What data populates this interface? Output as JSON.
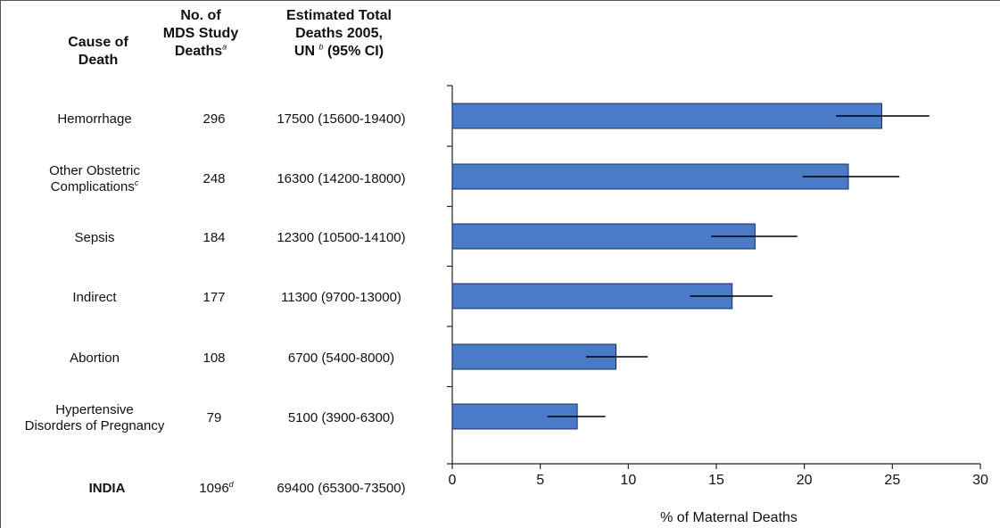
{
  "table": {
    "headers": {
      "cause": [
        "Cause of",
        "Death"
      ],
      "deaths": [
        "No. of",
        "MDS Study",
        "Deaths"
      ],
      "deaths_sup": "a",
      "estimated": [
        "Estimated Total",
        "Deaths 2005,",
        "UN",
        "(95% CI)"
      ],
      "estimated_sup": "b"
    },
    "rows": [
      {
        "cause": [
          "Hemorrhage"
        ],
        "cause_sup": "",
        "deaths": "296",
        "estimate": "17500 (15600-19400)"
      },
      {
        "cause": [
          "Other Obstetric",
          "Complications"
        ],
        "cause_sup": "c",
        "deaths": "248",
        "estimate": "16300 (14200-18000)"
      },
      {
        "cause": [
          "Sepsis"
        ],
        "cause_sup": "",
        "deaths": "184",
        "estimate": "12300 (10500-14100)"
      },
      {
        "cause": [
          "Indirect"
        ],
        "cause_sup": "",
        "deaths": "177",
        "estimate": "11300 (9700-13000)"
      },
      {
        "cause": [
          "Abortion"
        ],
        "cause_sup": "",
        "deaths": "108",
        "estimate": "6700 (5400-8000)"
      },
      {
        "cause": [
          "Hypertensive",
          "Disorders of Pregnancy"
        ],
        "cause_sup": "",
        "deaths": "79",
        "estimate": "5100 (3900-6300)"
      }
    ],
    "total": {
      "cause": "INDIA",
      "deaths": "1096",
      "deaths_sup": "d",
      "estimate": "69400 (65300-73500)"
    }
  },
  "chart_data": {
    "type": "bar",
    "orientation": "horizontal",
    "categories": [
      "Hemorrhage",
      "Other Obstetric Complications",
      "Sepsis",
      "Indirect",
      "Abortion",
      "Hypertensive Disorders of Pregnancy"
    ],
    "values": [
      24.4,
      22.5,
      17.2,
      15.9,
      9.3,
      7.1
    ],
    "error_low": [
      21.8,
      19.9,
      14.7,
      13.5,
      7.6,
      5.4
    ],
    "error_high": [
      27.1,
      25.4,
      19.6,
      18.2,
      11.1,
      8.7
    ],
    "xlabel": "% of Maternal Deaths",
    "xlim": [
      0,
      30
    ],
    "xticks": [
      "0",
      "5",
      "10",
      "15",
      "20",
      "25",
      "30"
    ],
    "bar_color": "#4a7bc8",
    "error_color": "#000000",
    "grid": false
  }
}
